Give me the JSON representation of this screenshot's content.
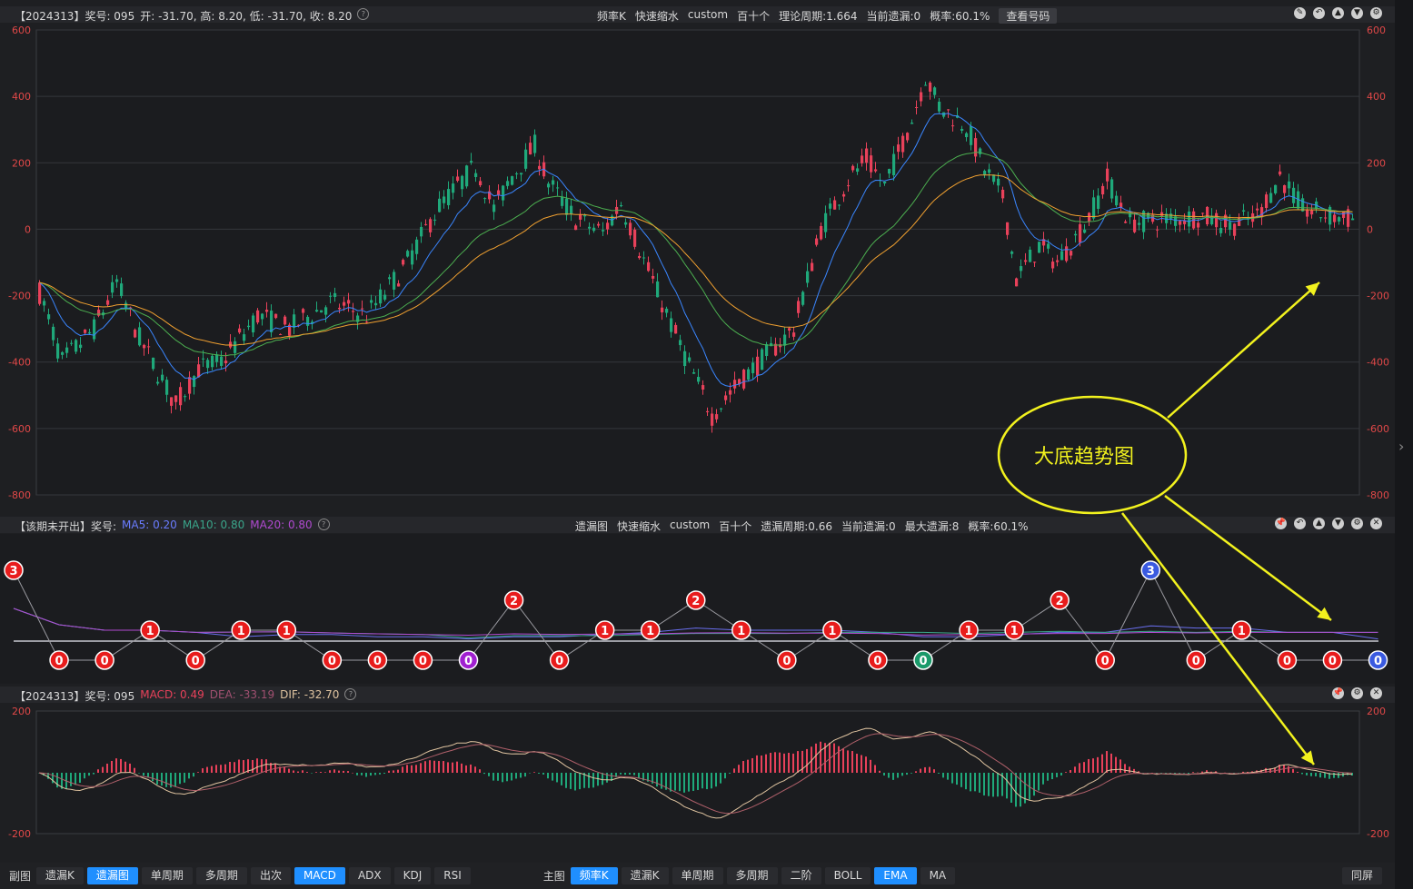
{
  "main_header": {
    "left": "【2024313】奖号: 095",
    "ohlc": "开: -31.70, 高: 8.20, 低: -31.70, 收: 8.20",
    "items": [
      "频率K",
      "快速缩水",
      "custom",
      "百十个",
      "理论周期:1.664",
      "当前遗漏:0",
      "概率:60.1%"
    ],
    "button": "查看号码",
    "icons": [
      "edit-icon",
      "undo-icon",
      "up-icon",
      "down-icon",
      "settings-icon"
    ]
  },
  "miss_header": {
    "left": "【该期未开出】奖号:",
    "ma5": "MA5: 0.20",
    "ma10": "MA10: 0.80",
    "ma20": "MA20: 0.80",
    "items": [
      "遗漏图",
      "快速缩水",
      "custom",
      "百十个",
      "遗漏周期:0.66",
      "当前遗漏:0",
      "最大遗漏:8",
      "概率:60.1%"
    ],
    "icons": [
      "pin-icon",
      "undo-icon",
      "up-icon",
      "down-icon",
      "settings-icon",
      "close-icon"
    ]
  },
  "macd_header": {
    "left": "【2024313】奖号: 095",
    "macd": "MACD: 0.49",
    "dea": "DEA: -33.19",
    "dif": "DIF: -32.70",
    "icons": [
      "pin-icon",
      "settings-icon",
      "close-icon"
    ]
  },
  "main_axis": [
    "600",
    "400",
    "200",
    "0",
    "-200",
    "-400",
    "-600",
    "-800"
  ],
  "macd_axis": [
    "200",
    "-200"
  ],
  "annotation": "大底趋势图",
  "miss_points": [
    {
      "v": 3,
      "c": "red"
    },
    {
      "v": 0,
      "c": "red"
    },
    {
      "v": 0,
      "c": "red"
    },
    {
      "v": 1,
      "c": "red"
    },
    {
      "v": 0,
      "c": "red"
    },
    {
      "v": 1,
      "c": "red"
    },
    {
      "v": 1,
      "c": "red"
    },
    {
      "v": 0,
      "c": "red"
    },
    {
      "v": 0,
      "c": "red"
    },
    {
      "v": 0,
      "c": "red"
    },
    {
      "v": 0,
      "c": "purple"
    },
    {
      "v": 2,
      "c": "red"
    },
    {
      "v": 0,
      "c": "red"
    },
    {
      "v": 1,
      "c": "red"
    },
    {
      "v": 1,
      "c": "red"
    },
    {
      "v": 2,
      "c": "red"
    },
    {
      "v": 1,
      "c": "red"
    },
    {
      "v": 0,
      "c": "red"
    },
    {
      "v": 1,
      "c": "red"
    },
    {
      "v": 0,
      "c": "red"
    },
    {
      "v": 0,
      "c": "green"
    },
    {
      "v": 1,
      "c": "red"
    },
    {
      "v": 1,
      "c": "red"
    },
    {
      "v": 2,
      "c": "red"
    },
    {
      "v": 0,
      "c": "red"
    },
    {
      "v": 3,
      "c": "blue"
    },
    {
      "v": 0,
      "c": "red"
    },
    {
      "v": 1,
      "c": "red"
    },
    {
      "v": 0,
      "c": "red"
    },
    {
      "v": 0,
      "c": "red"
    },
    {
      "v": 0,
      "c": "blue"
    }
  ],
  "bottom_bar": {
    "sub_label": "副图",
    "sub_tabs": [
      {
        "label": "遗漏K",
        "active": false
      },
      {
        "label": "遗漏图",
        "active": true
      },
      {
        "label": "单周期",
        "active": false
      },
      {
        "label": "多周期",
        "active": false
      },
      {
        "label": "出次",
        "active": false
      },
      {
        "label": "MACD",
        "active": true
      },
      {
        "label": "ADX",
        "active": false
      },
      {
        "label": "KDJ",
        "active": false
      },
      {
        "label": "RSI",
        "active": false
      }
    ],
    "main_label": "主图",
    "main_tabs": [
      {
        "label": "频率K",
        "active": true
      },
      {
        "label": "遗漏K",
        "active": false
      },
      {
        "label": "单周期",
        "active": false
      },
      {
        "label": "多周期",
        "active": false
      },
      {
        "label": "二阶",
        "active": false
      },
      {
        "label": "BOLL",
        "active": false
      },
      {
        "label": "EMA",
        "active": true
      },
      {
        "label": "MA",
        "active": false
      }
    ],
    "fullscreen": "同屏"
  },
  "colors": {
    "up": "#e8415a",
    "down": "#1fa87a",
    "ema_fast": "#3a86ff",
    "ema_mid": "#4caf50",
    "ema_slow": "#f0a030",
    "annot": "#f2f21e"
  }
}
